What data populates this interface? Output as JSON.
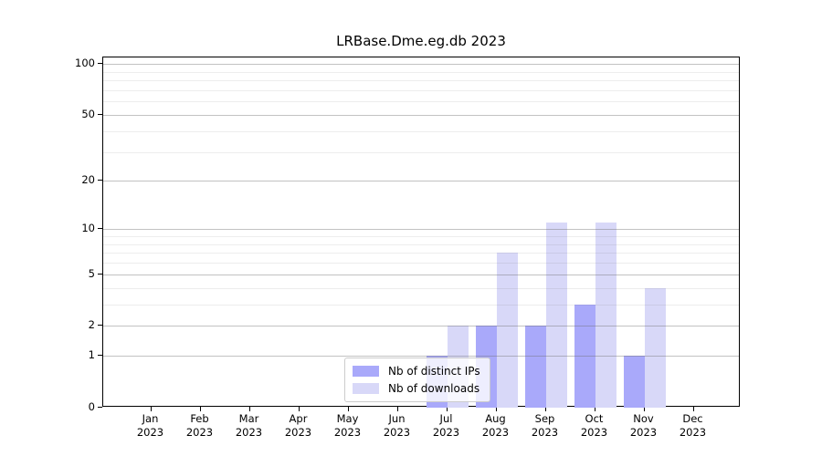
{
  "chart_data": {
    "type": "bar",
    "title": "LRBase.Dme.eg.db 2023",
    "categories": [
      "Jan 2023",
      "Feb 2023",
      "Mar 2023",
      "Apr 2023",
      "May 2023",
      "Jun 2023",
      "Jul 2023",
      "Aug 2023",
      "Sep 2023",
      "Oct 2023",
      "Nov 2023",
      "Dec 2023"
    ],
    "series": [
      {
        "name": "Nb of distinct IPs",
        "color": "#a9a9fa",
        "values": [
          0,
          0,
          0,
          0,
          0,
          0,
          1,
          2,
          2,
          3,
          1,
          0
        ]
      },
      {
        "name": "Nb of downloads",
        "color": "#d8d8f8",
        "values": [
          0,
          0,
          0,
          0,
          0,
          0,
          2,
          7,
          11,
          11,
          4,
          0
        ]
      }
    ],
    "xlabel": "",
    "ylabel": "",
    "yscale": "log10(value+1)",
    "yticks": [
      0,
      1,
      2,
      5,
      10,
      20,
      50,
      100
    ],
    "minor_yticks": [
      3,
      4,
      6,
      7,
      8,
      9,
      30,
      40,
      60,
      70,
      80,
      90
    ],
    "ylim": [
      0,
      110
    ],
    "grid": "horizontal major+minor, drawn over bars",
    "legend_position": "bottom-center inside plot"
  }
}
